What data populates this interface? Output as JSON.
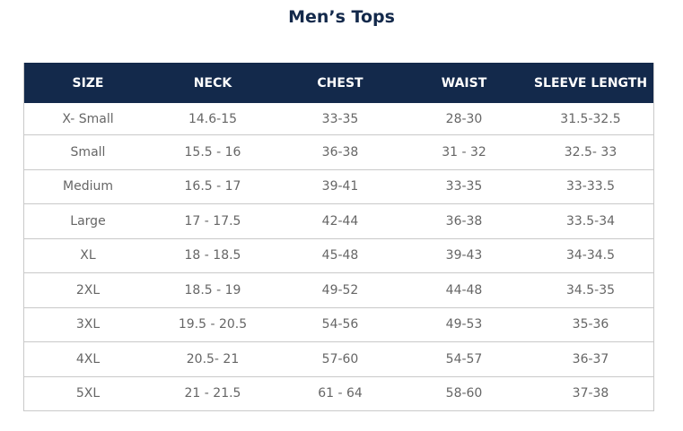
{
  "header": {
    "title": "Men’s Tops"
  },
  "table": {
    "columns": [
      "SIZE",
      "NECK",
      "CHEST",
      "WAIST",
      "SLEEVE LENGTH"
    ],
    "rows": [
      [
        "X- Small",
        "14.6-15",
        "33-35",
        "28-30",
        "31.5-32.5"
      ],
      [
        "Small",
        "15.5 - 16",
        "36-38",
        "31 - 32",
        "32.5- 33"
      ],
      [
        "Medium",
        "16.5 - 17",
        "39-41",
        "33-35",
        "33-33.5"
      ],
      [
        "Large",
        "17 - 17.5",
        "42-44",
        "36-38",
        "33.5-34"
      ],
      [
        "XL",
        "18 - 18.5",
        "45-48",
        "39-43",
        "34-34.5"
      ],
      [
        "2XL",
        "18.5 - 19",
        "49-52",
        "44-48",
        "34.5-35"
      ],
      [
        "3XL",
        "19.5 - 20.5",
        "54-56",
        "49-53",
        "35-36"
      ],
      [
        "4XL",
        "20.5- 21",
        "57-60",
        "54-57",
        "36-37"
      ],
      [
        "5XL",
        "21 - 21.5",
        "61 - 64",
        "58-60",
        "37-38"
      ]
    ]
  }
}
